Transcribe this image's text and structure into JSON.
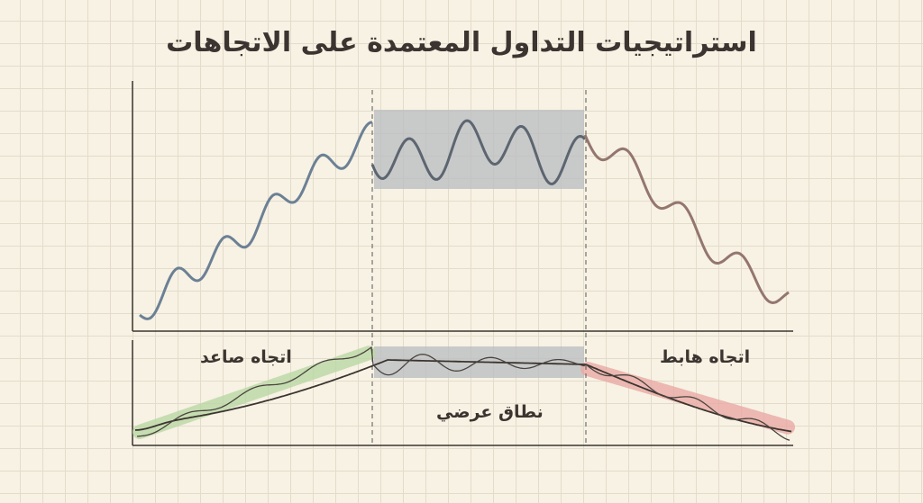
{
  "title": "استراتيجيات التداول المعتمدة على الاتجاهات",
  "labels": {
    "uptrend": "اتجاه صاعد",
    "range": "نطاق عرضي",
    "downtrend": "اتجاه هابط"
  },
  "colors": {
    "uptrend_line": "#6c8095",
    "range_line": "#5d6570",
    "downtrend_line": "#94766f",
    "range_box": "#b8bcc0",
    "uptrend_band": "#b9d7a4",
    "downtrend_band": "#e9a9a4",
    "axis": "#3b3430",
    "background": "#f7f2e4"
  }
}
